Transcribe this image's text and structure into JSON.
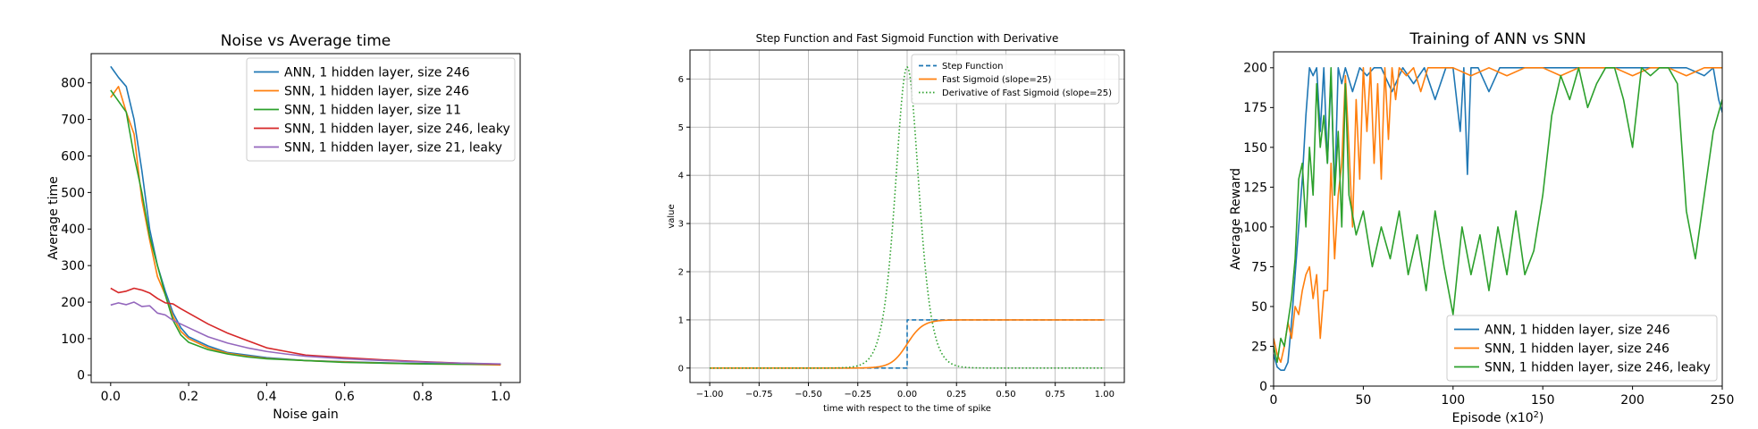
{
  "chart_data": [
    {
      "type": "line",
      "title": "Noise vs Average time",
      "xlabel": "Noise gain",
      "ylabel": "Average time",
      "xlim": [
        -0.05,
        1.05
      ],
      "ylim": [
        -20,
        880
      ],
      "xticks": [
        0.0,
        0.2,
        0.4,
        0.6,
        0.8,
        1.0
      ],
      "xtick_labels": [
        "0.0",
        "0.2",
        "0.4",
        "0.6",
        "0.8",
        "1.0"
      ],
      "yticks": [
        0,
        100,
        200,
        300,
        400,
        500,
        600,
        700,
        800
      ],
      "ytick_labels": [
        "0",
        "100",
        "200",
        "300",
        "400",
        "500",
        "600",
        "700",
        "800"
      ],
      "grid": false,
      "legend_position": "upper-right",
      "series": [
        {
          "name": "ANN, 1 hidden layer, size 246",
          "color": "#1f77b4",
          "x": [
            0.0,
            0.02,
            0.04,
            0.06,
            0.08,
            0.1,
            0.12,
            0.14,
            0.16,
            0.18,
            0.2,
            0.25,
            0.3,
            0.35,
            0.4,
            0.5,
            0.6,
            0.7,
            0.8,
            0.9,
            1.0
          ],
          "y": [
            845,
            815,
            790,
            700,
            560,
            400,
            300,
            230,
            170,
            130,
            105,
            80,
            62,
            55,
            48,
            40,
            37,
            34,
            32,
            31,
            30
          ]
        },
        {
          "name": "SNN, 1 hidden layer, size 246",
          "color": "#ff7f0e",
          "x": [
            0.0,
            0.02,
            0.04,
            0.06,
            0.08,
            0.1,
            0.12,
            0.14,
            0.16,
            0.18,
            0.2,
            0.25,
            0.3,
            0.35,
            0.4,
            0.5,
            0.6,
            0.7,
            0.8,
            0.9,
            1.0
          ],
          "y": [
            760,
            790,
            720,
            660,
            480,
            370,
            270,
            220,
            160,
            120,
            100,
            75,
            60,
            52,
            46,
            40,
            36,
            33,
            31,
            30,
            28
          ]
        },
        {
          "name": "SNN, 1 hidden layer, size 11",
          "color": "#2ca02c",
          "x": [
            0.0,
            0.02,
            0.04,
            0.06,
            0.08,
            0.1,
            0.12,
            0.14,
            0.16,
            0.18,
            0.2,
            0.25,
            0.3,
            0.35,
            0.4,
            0.5,
            0.6,
            0.7,
            0.8,
            0.9,
            1.0
          ],
          "y": [
            780,
            750,
            720,
            600,
            500,
            380,
            300,
            220,
            150,
            110,
            90,
            70,
            58,
            50,
            45,
            40,
            35,
            33,
            31,
            30,
            30
          ]
        },
        {
          "name": "SNN, 1 hidden layer, size 246, leaky",
          "color": "#d62728",
          "x": [
            0.0,
            0.02,
            0.04,
            0.06,
            0.08,
            0.1,
            0.12,
            0.14,
            0.16,
            0.18,
            0.2,
            0.25,
            0.3,
            0.35,
            0.4,
            0.45,
            0.5,
            0.6,
            0.7,
            0.8,
            0.9,
            1.0
          ],
          "y": [
            238,
            226,
            230,
            238,
            233,
            225,
            210,
            198,
            195,
            182,
            170,
            140,
            115,
            95,
            75,
            65,
            55,
            48,
            42,
            37,
            33,
            30
          ]
        },
        {
          "name": "SNN, 1 hidden layer, size 21, leaky",
          "color": "#9467bd",
          "x": [
            0.0,
            0.02,
            0.04,
            0.06,
            0.08,
            0.1,
            0.12,
            0.14,
            0.16,
            0.18,
            0.2,
            0.25,
            0.3,
            0.35,
            0.4,
            0.45,
            0.5,
            0.6,
            0.7,
            0.8,
            0.9,
            1.0
          ],
          "y": [
            192,
            198,
            193,
            200,
            188,
            190,
            170,
            165,
            150,
            140,
            130,
            105,
            88,
            75,
            65,
            58,
            52,
            45,
            40,
            36,
            33,
            31
          ]
        }
      ]
    },
    {
      "type": "line",
      "title": "Step Function and Fast Sigmoid Function with Derivative",
      "xlabel": "time with respect to the time of spike",
      "ylabel": "value",
      "xlim": [
        -1.1,
        1.1
      ],
      "ylim": [
        -0.3,
        6.6
      ],
      "xticks": [
        -1.0,
        -0.75,
        -0.5,
        -0.25,
        0.0,
        0.25,
        0.5,
        0.75,
        1.0
      ],
      "xtick_labels": [
        "−1.00",
        "−0.75",
        "−0.50",
        "−0.25",
        "0.00",
        "0.25",
        "0.50",
        "0.75",
        "1.00"
      ],
      "yticks": [
        0,
        1,
        2,
        3,
        4,
        5,
        6
      ],
      "ytick_labels": [
        "0",
        "1",
        "2",
        "3",
        "4",
        "5",
        "6"
      ],
      "grid": true,
      "legend_position": "upper-right",
      "series": [
        {
          "name": "Step Function",
          "color": "#1f77b4",
          "style": "dashed",
          "function": "step"
        },
        {
          "name": "Fast Sigmoid (slope=25)",
          "color": "#ff7f0e",
          "style": "solid",
          "function": "sigmoid",
          "slope": 25
        },
        {
          "name": "Derivative of Fast Sigmoid (slope=25)",
          "color": "#2ca02c",
          "style": "dotted",
          "function": "sigmoid_derivative",
          "slope": 25
        }
      ]
    },
    {
      "type": "line",
      "title": "Training of ANN vs SNN",
      "xlabel": "Episode (x10",
      "xlabel_superscript": "2",
      "xlabel_suffix": ")",
      "ylabel": "Average Reward",
      "xlim": [
        0,
        250
      ],
      "ylim": [
        0,
        210
      ],
      "xticks": [
        0,
        50,
        100,
        150,
        200,
        250
      ],
      "xtick_labels": [
        "0",
        "50",
        "100",
        "150",
        "200",
        "250"
      ],
      "yticks": [
        0,
        25,
        50,
        75,
        100,
        125,
        150,
        175,
        200
      ],
      "ytick_labels": [
        "0",
        "25",
        "50",
        "75",
        "100",
        "125",
        "150",
        "175",
        "200"
      ],
      "grid": false,
      "legend_position": "lower-right",
      "series": [
        {
          "name": "ANN, 1 hidden layer, size 246",
          "color": "#1f77b4",
          "x": [
            0,
            2,
            4,
            6,
            8,
            10,
            12,
            14,
            16,
            18,
            20,
            22,
            24,
            26,
            28,
            30,
            32,
            34,
            36,
            38,
            40,
            44,
            48,
            52,
            56,
            60,
            66,
            72,
            78,
            84,
            90,
            96,
            100,
            104,
            106,
            108,
            110,
            114,
            120,
            126,
            132,
            140,
            150,
            160,
            170,
            180,
            190,
            200,
            210,
            220,
            230,
            240,
            245,
            248,
            250
          ],
          "y": [
            20,
            12,
            10,
            10,
            15,
            40,
            70,
            100,
            130,
            170,
            200,
            195,
            200,
            160,
            200,
            140,
            195,
            120,
            200,
            190,
            200,
            185,
            200,
            195,
            200,
            200,
            185,
            200,
            190,
            200,
            180,
            200,
            200,
            160,
            200,
            133,
            200,
            200,
            185,
            200,
            200,
            200,
            200,
            200,
            200,
            200,
            200,
            200,
            200,
            200,
            200,
            195,
            200,
            180,
            172
          ]
        },
        {
          "name": "SNN, 1 hidden layer, size 246",
          "color": "#ff7f0e",
          "x": [
            0,
            2,
            4,
            6,
            8,
            10,
            12,
            14,
            16,
            18,
            20,
            22,
            24,
            26,
            28,
            30,
            32,
            34,
            36,
            38,
            40,
            42,
            44,
            46,
            48,
            50,
            52,
            54,
            56,
            58,
            60,
            62,
            64,
            66,
            68,
            70,
            74,
            78,
            82,
            86,
            90,
            100,
            110,
            120,
            130,
            140,
            150,
            160,
            170,
            180,
            190,
            200,
            210,
            220,
            230,
            240,
            250
          ],
          "y": [
            30,
            20,
            15,
            25,
            40,
            30,
            50,
            45,
            60,
            70,
            75,
            55,
            70,
            30,
            60,
            60,
            140,
            80,
            120,
            140,
            195,
            150,
            100,
            180,
            130,
            200,
            160,
            200,
            140,
            190,
            130,
            200,
            155,
            200,
            180,
            200,
            195,
            200,
            185,
            200,
            200,
            200,
            195,
            200,
            195,
            200,
            200,
            195,
            200,
            200,
            200,
            195,
            200,
            200,
            195,
            200,
            200
          ]
        },
        {
          "name": "SNN, 1 hidden layer, size 246, leaky",
          "color": "#2ca02c",
          "x": [
            0,
            2,
            4,
            6,
            8,
            10,
            12,
            14,
            16,
            18,
            20,
            22,
            24,
            26,
            28,
            30,
            32,
            34,
            36,
            38,
            40,
            42,
            46,
            50,
            55,
            60,
            65,
            70,
            75,
            80,
            85,
            90,
            95,
            100,
            105,
            110,
            115,
            120,
            125,
            130,
            135,
            140,
            145,
            150,
            155,
            160,
            165,
            170,
            175,
            180,
            185,
            190,
            195,
            200,
            205,
            210,
            215,
            220,
            225,
            230,
            235,
            240,
            245,
            250
          ],
          "y": [
            25,
            15,
            30,
            25,
            40,
            55,
            80,
            130,
            140,
            100,
            150,
            120,
            190,
            150,
            170,
            140,
            200,
            120,
            160,
            100,
            190,
            120,
            95,
            110,
            75,
            100,
            80,
            110,
            70,
            95,
            60,
            110,
            75,
            45,
            100,
            70,
            95,
            60,
            100,
            70,
            110,
            70,
            85,
            120,
            170,
            195,
            180,
            200,
            175,
            190,
            200,
            200,
            180,
            150,
            200,
            195,
            200,
            200,
            190,
            110,
            80,
            120,
            160,
            180
          ]
        }
      ]
    }
  ]
}
